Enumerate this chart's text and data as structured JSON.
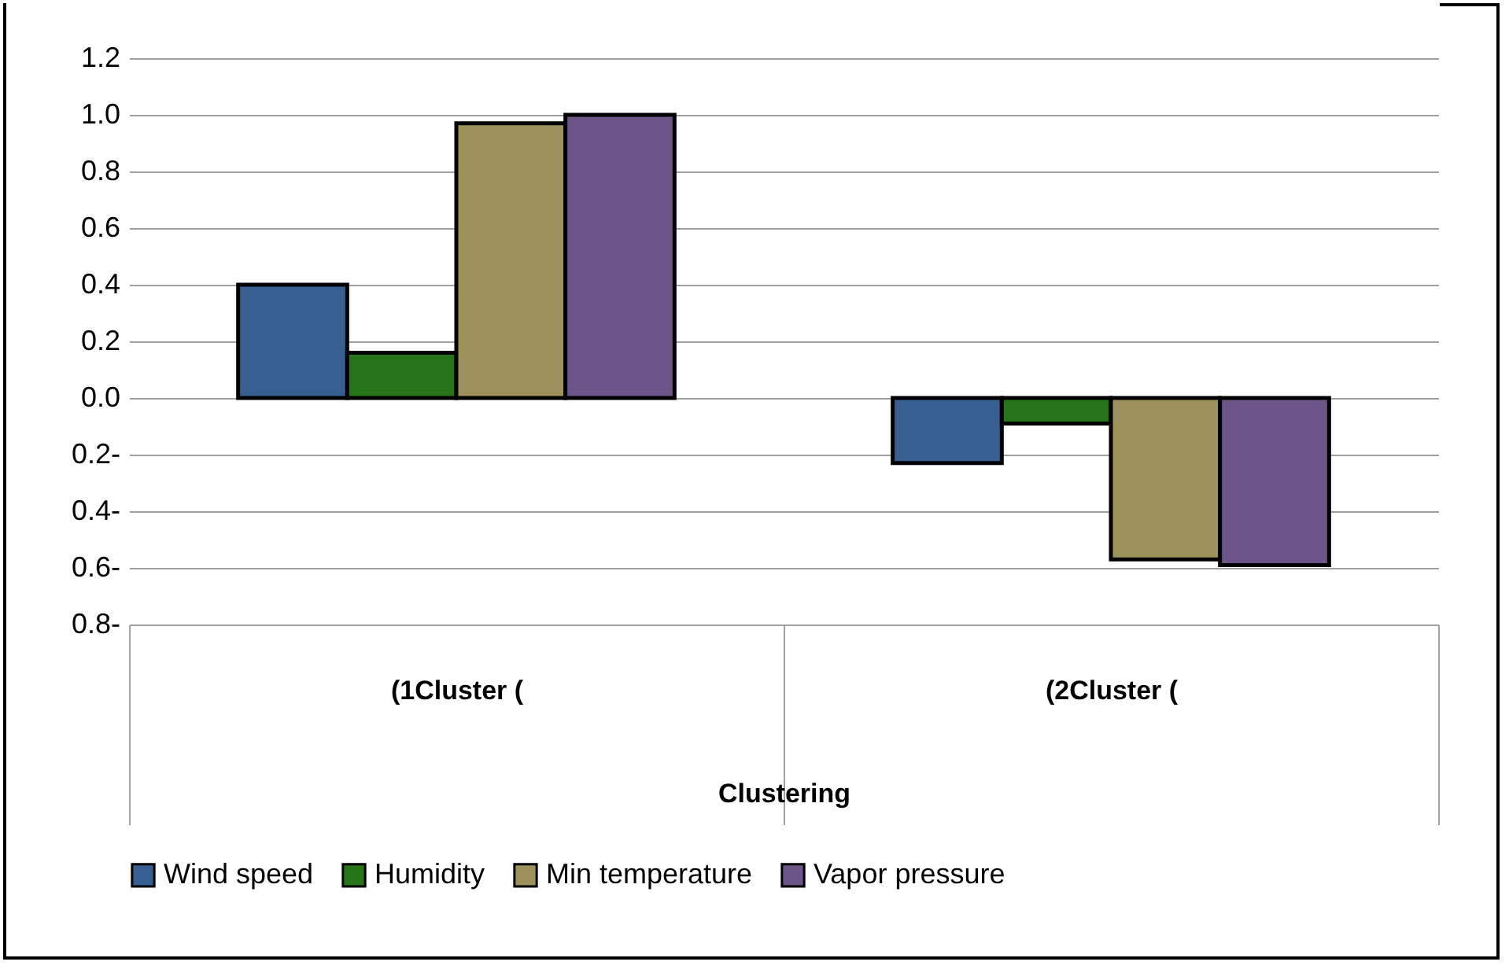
{
  "chart_data": {
    "type": "bar",
    "xlabel": "Clustering",
    "categories": [
      "(1Cluster (",
      "(2Cluster ("
    ],
    "series": [
      {
        "name": "Wind speed",
        "color": "#376092",
        "values": [
          0.4,
          -0.23
        ]
      },
      {
        "name": "Humidity",
        "color": "#267519",
        "values": [
          0.16,
          -0.09
        ]
      },
      {
        "name": "Min temperature",
        "color": "#9e925c",
        "values": [
          0.97,
          -0.57
        ]
      },
      {
        "name": "Vapor pressure",
        "color": "#6d5489",
        "values": [
          1.0,
          -0.59
        ]
      }
    ],
    "ylim": [
      -0.8,
      1.2
    ],
    "yticks": [
      {
        "value": -0.8,
        "label": "0.8-"
      },
      {
        "value": -0.6,
        "label": "0.6-"
      },
      {
        "value": -0.4,
        "label": "0.4-"
      },
      {
        "value": -0.2,
        "label": "0.2-"
      },
      {
        "value": 0,
        "label": "0.0"
      },
      {
        "value": 0.2,
        "label": "0.2"
      },
      {
        "value": 0.4,
        "label": "0.4"
      },
      {
        "value": 0.6,
        "label": "0.6"
      },
      {
        "value": 0.8,
        "label": "0.8"
      },
      {
        "value": 1.0,
        "label": "1.0"
      },
      {
        "value": 1.2,
        "label": "1.2"
      }
    ],
    "grid": "y",
    "legend": "bottom"
  }
}
